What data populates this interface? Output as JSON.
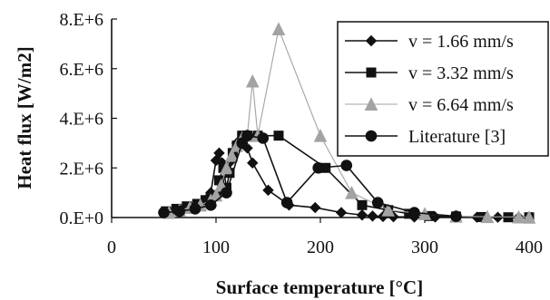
{
  "chart_data": {
    "type": "line",
    "xlabel": "Surface temperature [°C]",
    "ylabel": "Heat flux [W/m2]",
    "xlim": [
      0,
      400
    ],
    "ylim": [
      0,
      8000000
    ],
    "x_ticks": [
      0,
      100,
      200,
      300,
      400
    ],
    "x_tick_labels": [
      "0",
      "100",
      "200",
      "300",
      "400"
    ],
    "y_ticks": [
      0,
      2000000,
      4000000,
      6000000,
      8000000
    ],
    "y_tick_labels": [
      "0.E+0",
      "2.E+6",
      "4.E+6",
      "6.E+6",
      "8.E+6"
    ],
    "grid": false,
    "legend_position": "top-right",
    "series": [
      {
        "name": "v = 1.66 mm/s",
        "marker": "diamond",
        "color": "#111111",
        "x": [
          50,
          60,
          70,
          80,
          90,
          95,
          100,
          103,
          106,
          110,
          115,
          120,
          125,
          130,
          135,
          150,
          170,
          195,
          220,
          240,
          250,
          260,
          270,
          290,
          310,
          330,
          350,
          370,
          390
        ],
        "y": [
          200000,
          300000,
          400000,
          500000,
          700000,
          1000000,
          2300000,
          2600000,
          2200000,
          2100000,
          2300000,
          3000000,
          3200000,
          2800000,
          2200000,
          1100000,
          500000,
          400000,
          200000,
          100000,
          60000,
          40000,
          30000,
          20000,
          20000,
          10000,
          10000,
          10000,
          10000
        ]
      },
      {
        "name": "v = 3.32 mm/s",
        "marker": "square",
        "color": "#111111",
        "x": [
          52,
          62,
          72,
          82,
          90,
          95,
          100,
          103,
          107,
          110,
          113,
          116,
          120,
          125,
          130,
          140,
          160,
          205,
          240,
          265,
          285,
          305,
          330,
          355,
          380,
          400
        ],
        "y": [
          250000,
          350000,
          450000,
          550000,
          700000,
          800000,
          900000,
          1500000,
          2000000,
          1200000,
          1800000,
          2600000,
          2900000,
          3300000,
          3300000,
          3300000,
          3300000,
          2000000,
          500000,
          300000,
          150000,
          60000,
          40000,
          20000,
          10000,
          10000
        ]
      },
      {
        "name": "v = 6.64 mm/s",
        "marker": "triangle",
        "color": "#a3a3a3",
        "x": [
          55,
          65,
          75,
          85,
          95,
          100,
          105,
          110,
          115,
          120,
          125,
          130,
          135,
          140,
          160,
          200,
          230,
          265,
          300,
          330,
          360,
          390,
          400
        ],
        "y": [
          200000,
          300000,
          400000,
          500000,
          700000,
          900000,
          1300000,
          2000000,
          2500000,
          2900000,
          3200000,
          3300000,
          5500000,
          3300000,
          7600000,
          3300000,
          1000000,
          300000,
          150000,
          50000,
          30000,
          20000,
          10000
        ]
      },
      {
        "name": "Literature [3]",
        "marker": "circle",
        "color": "#111111",
        "x": [
          50,
          65,
          80,
          95,
          110,
          125,
          130,
          145,
          168,
          198,
          225,
          255,
          290,
          330
        ],
        "y": [
          200000,
          250000,
          350000,
          500000,
          1000000,
          3000000,
          3300000,
          3200000,
          600000,
          2000000,
          2100000,
          600000,
          200000,
          50000
        ]
      }
    ]
  }
}
